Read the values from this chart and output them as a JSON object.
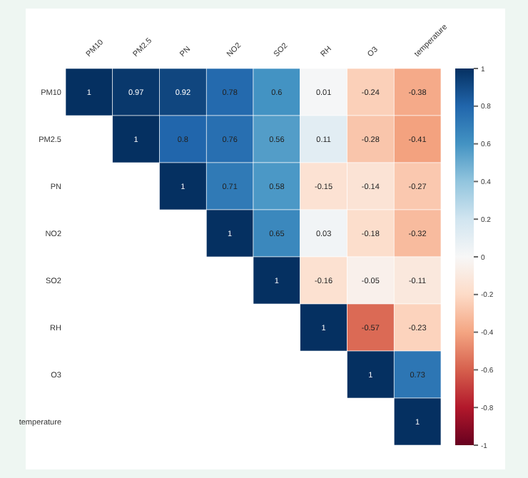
{
  "chart_data": {
    "type": "heatmap",
    "categories": [
      "PM10",
      "PM2.5",
      "PN",
      "NO2",
      "SO2",
      "RH",
      "O3",
      "temperature"
    ],
    "y_categories": [
      "PM10",
      "PM2.5",
      "PN",
      "NO2",
      "SO2",
      "RH",
      "O3",
      "temperature"
    ],
    "cells": [
      [
        1,
        0.97,
        0.92,
        0.78,
        0.6,
        0.01,
        -0.24,
        -0.38
      ],
      [
        null,
        1,
        0.8,
        0.76,
        0.56,
        0.11,
        -0.28,
        -0.41
      ],
      [
        null,
        null,
        1,
        0.71,
        0.58,
        -0.15,
        -0.14,
        -0.27
      ],
      [
        null,
        null,
        null,
        1,
        0.65,
        0.03,
        -0.18,
        -0.32
      ],
      [
        null,
        null,
        null,
        null,
        1,
        -0.16,
        -0.05,
        -0.11
      ],
      [
        null,
        null,
        null,
        null,
        null,
        1,
        -0.57,
        -0.23
      ],
      [
        null,
        null,
        null,
        null,
        null,
        null,
        1,
        0.73
      ],
      [
        null,
        null,
        null,
        null,
        null,
        null,
        null,
        1
      ]
    ],
    "clim": [
      -1,
      1
    ],
    "cticks": [
      1,
      0.8,
      0.6,
      0.4,
      0.2,
      0,
      -0.2,
      -0.4,
      -0.6,
      -0.8,
      -1
    ],
    "data_labels": true
  }
}
